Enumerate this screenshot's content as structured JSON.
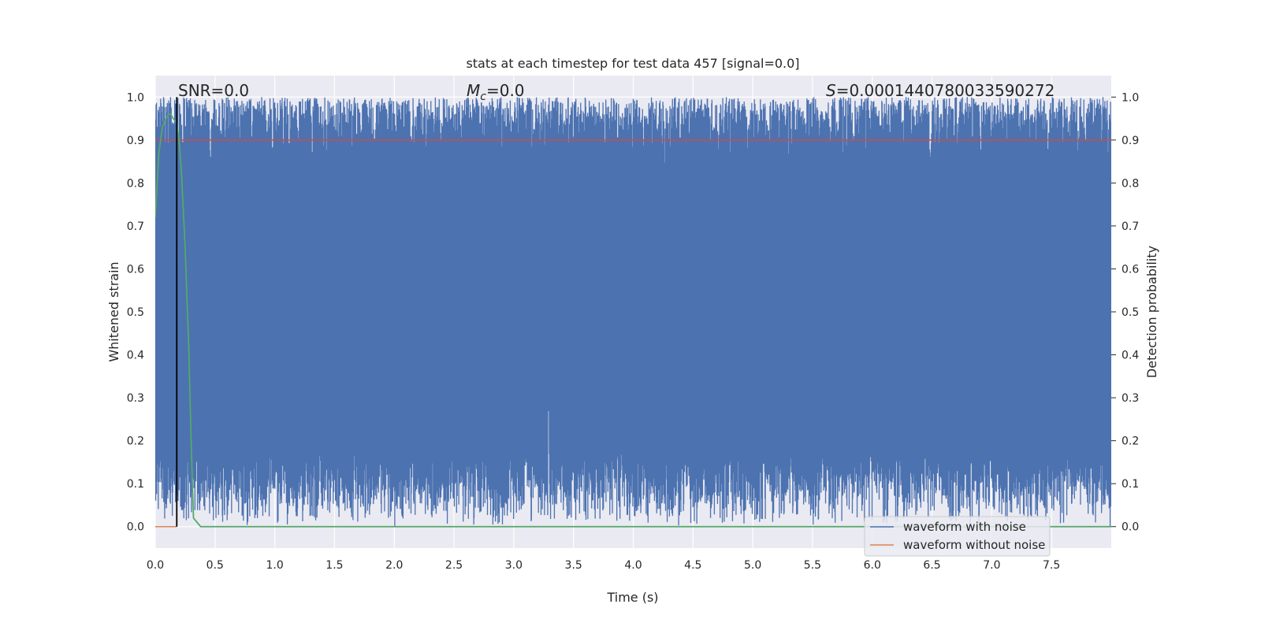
{
  "chart_data": {
    "type": "line",
    "title": "stats at each timestep for test data 457 [signal=0.0]",
    "xlabel": "Time (s)",
    "ylabel": "Whitened strain",
    "ylabel_right": "Detection probability",
    "xlim": [
      0.0,
      8.0
    ],
    "ylim": [
      -0.05,
      1.05
    ],
    "xticks": [
      0.0,
      0.5,
      1.0,
      1.5,
      2.0,
      2.5,
      3.0,
      3.5,
      4.0,
      4.5,
      5.0,
      5.5,
      6.0,
      6.5,
      7.0,
      7.5
    ],
    "xtick_labels": [
      "0.0",
      "0.5",
      "1.0",
      "1.5",
      "2.0",
      "2.5",
      "3.0",
      "3.5",
      "4.0",
      "4.5",
      "5.0",
      "5.5",
      "6.0",
      "6.5",
      "7.0",
      "7.5"
    ],
    "yticks": [
      0.0,
      0.1,
      0.2,
      0.3,
      0.4,
      0.5,
      0.6,
      0.7,
      0.8,
      0.9,
      1.0
    ],
    "ytick_labels": [
      "0.0",
      "0.1",
      "0.2",
      "0.3",
      "0.4",
      "0.5",
      "0.6",
      "0.7",
      "0.8",
      "0.9",
      "1.0"
    ],
    "annotations": {
      "snr": "SNR=0.0",
      "mc_symbol": "M",
      "mc_sub": "c",
      "mc_value": "=0.0",
      "s_symbol": "S",
      "s_value": "=0.0001440780033590272"
    },
    "legend": {
      "position": "lower right",
      "entries": [
        {
          "label": "waveform with noise",
          "color": "#4c72b0"
        },
        {
          "label": "waveform without noise",
          "color": "#dd8452"
        }
      ]
    },
    "threshold_line": {
      "y": 0.9,
      "color": "#c44e52"
    },
    "marker_line": {
      "x": 0.18,
      "color": "#000000"
    },
    "series": [
      {
        "name": "waveform with noise",
        "color": "#4c72b0",
        "kind": "dense noise spanning 0 to 1"
      },
      {
        "name": "waveform without noise",
        "color": "#dd8452",
        "x": [
          0.0,
          0.18
        ],
        "y": [
          0.0,
          0.0
        ]
      },
      {
        "name": "detection probability",
        "color": "#55a868",
        "x": [
          0.0,
          0.03,
          0.06,
          0.09,
          0.11,
          0.13,
          0.15,
          0.18,
          0.2,
          0.22,
          0.25,
          0.28,
          0.3,
          0.32,
          0.35,
          0.38,
          0.5,
          1.0,
          2.0,
          3.0,
          4.0,
          5.0,
          6.0,
          7.0,
          8.0
        ],
        "y": [
          0.72,
          0.87,
          0.93,
          0.95,
          0.96,
          0.96,
          0.95,
          0.94,
          0.9,
          0.82,
          0.65,
          0.42,
          0.2,
          0.02,
          0.01,
          0.0,
          0.0,
          0.0,
          0.0,
          0.0,
          0.0,
          0.0,
          0.0,
          0.0,
          0.0
        ]
      }
    ]
  }
}
